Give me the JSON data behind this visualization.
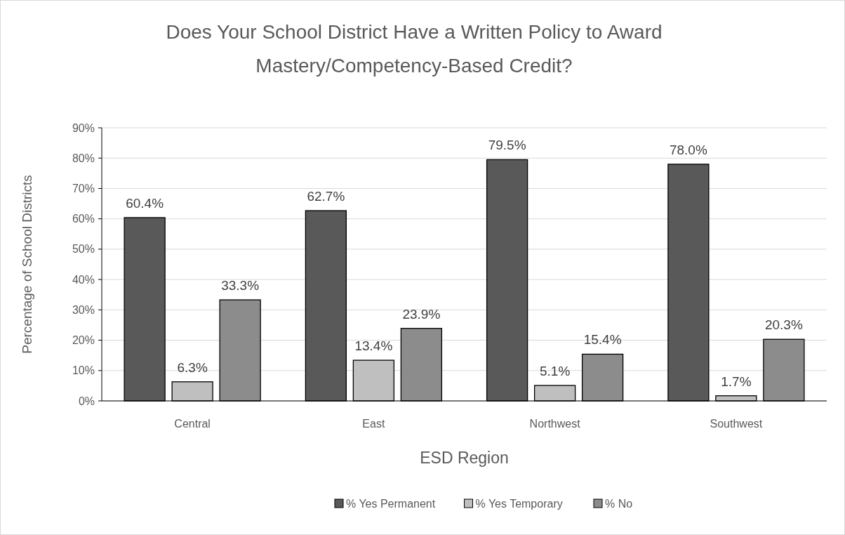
{
  "chart_data": {
    "type": "bar",
    "title": "Does Your School District Have a Written Policy to Award Mastery/Competency-Based Credit?",
    "xlabel": "ESD Region",
    "ylabel": "Percentage of School Districts",
    "categories": [
      "Central",
      "East",
      "Northwest",
      "Southwest"
    ],
    "series": [
      {
        "name": "% Yes Permanent",
        "color": "#595959",
        "values": [
          60.4,
          62.7,
          79.5,
          78.0
        ],
        "value_labels": [
          "60.4%",
          "62.7%",
          "79.5%",
          "78.0%"
        ]
      },
      {
        "name": "% Yes Temporary",
        "color": "#bfbfbf",
        "values": [
          6.3,
          13.4,
          5.1,
          1.7
        ],
        "value_labels": [
          "6.3%",
          "13.4%",
          "5.1%",
          "1.7%"
        ]
      },
      {
        "name": "% No",
        "color": "#8c8c8c",
        "values": [
          33.3,
          23.9,
          15.4,
          20.3
        ],
        "value_labels": [
          "33.3%",
          "23.9%",
          "15.4%",
          "20.3%"
        ]
      }
    ],
    "ylim": [
      0,
      90
    ],
    "yticks": [
      {
        "value": 0,
        "label": "0%"
      },
      {
        "value": 10,
        "label": "10%"
      },
      {
        "value": 20,
        "label": "20%"
      },
      {
        "value": 30,
        "label": "30%"
      },
      {
        "value": 40,
        "label": "40%"
      },
      {
        "value": 50,
        "label": "50%"
      },
      {
        "value": 60,
        "label": "60%"
      },
      {
        "value": 70,
        "label": "70%"
      },
      {
        "value": 80,
        "label": "80%"
      },
      {
        "value": 90,
        "label": "90%"
      }
    ],
    "grid": "y",
    "legend": "bottom"
  }
}
